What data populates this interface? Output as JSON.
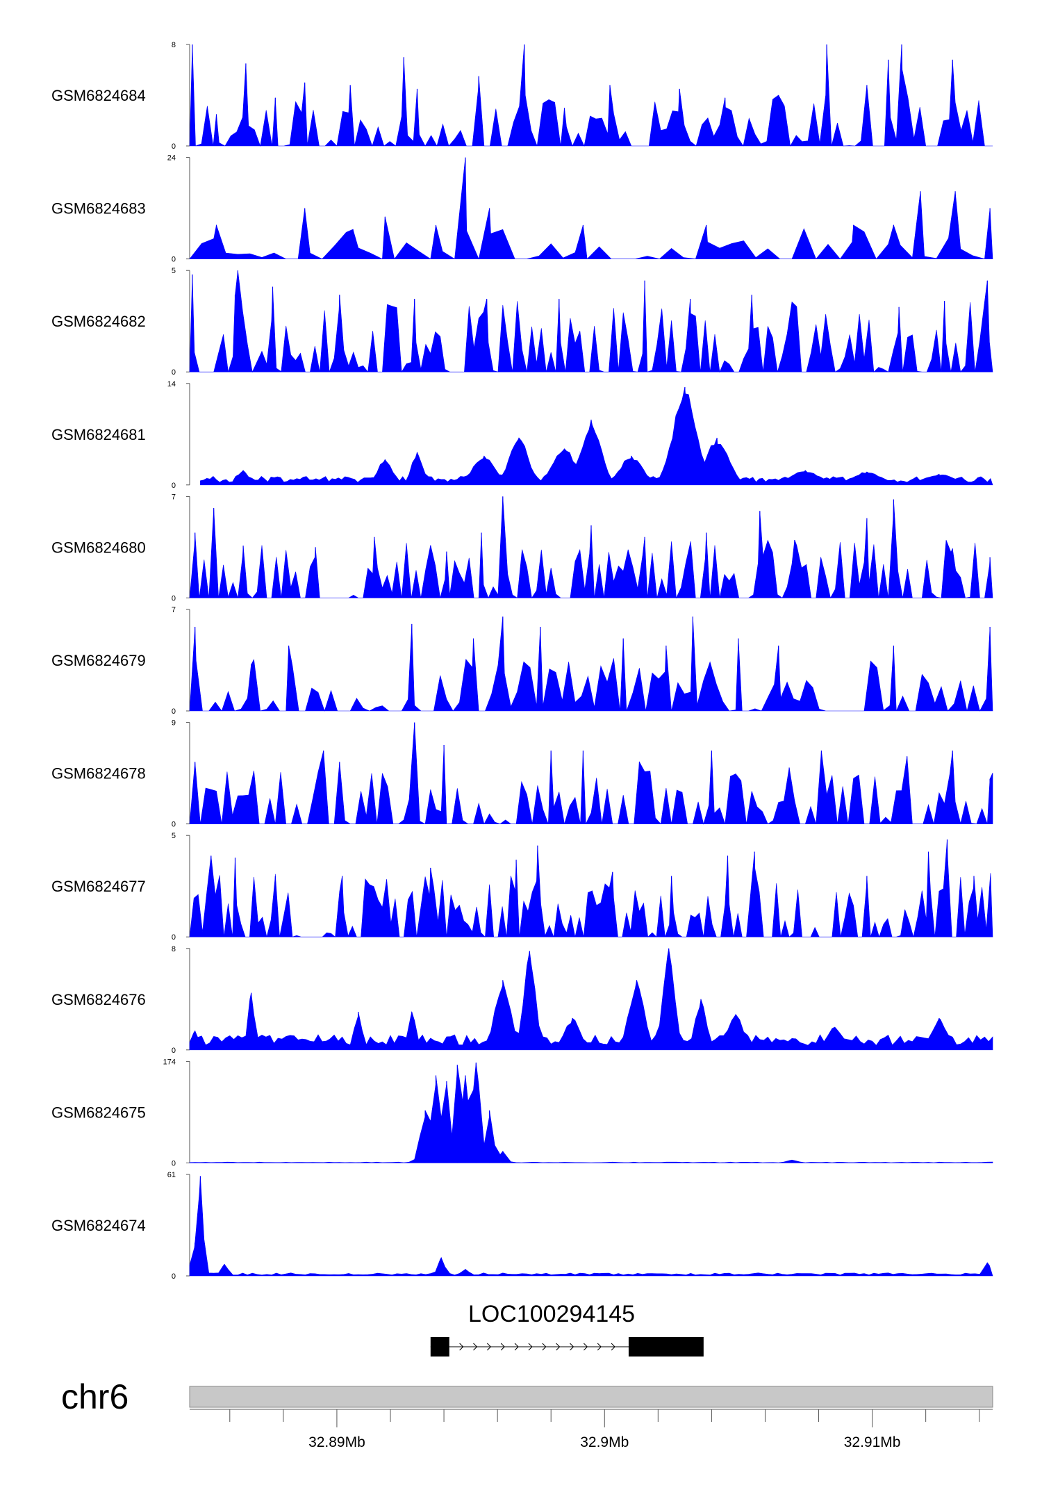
{
  "chart_data": {
    "type": "area",
    "chromosome": "chr6",
    "xlim_mb": [
      32.8845,
      32.9145
    ],
    "axis_ticks_mb": [
      32.89,
      32.9,
      32.91
    ],
    "axis_tick_labels": [
      "32.89Mb",
      "32.9Mb",
      "32.91Mb"
    ],
    "minor_tick_step_mb": 0.002,
    "fill_color": "#0000ff",
    "gene": {
      "name": "LOC100294145",
      "strand": "+",
      "start_mb": 32.8935,
      "end_mb": 32.9027,
      "exons_mb": [
        [
          32.8935,
          32.8942
        ],
        [
          32.9009,
          32.9037
        ]
      ]
    },
    "tracks": [
      {
        "name": "GSM6824684",
        "ymax_label": "8",
        "ymin_label": "0",
        "ymax": 8,
        "peaks": [
          [
            32.8846,
            8.0,
            8e-05
          ],
          [
            32.8855,
            2.5,
            0.0001
          ],
          [
            32.8866,
            6.5,
            0.00012
          ],
          [
            32.8877,
            3.8,
            0.0001
          ],
          [
            32.8888,
            5.0,
            0.0001
          ],
          [
            32.8905,
            4.8,
            0.0001
          ],
          [
            32.8925,
            7.0,
            0.00012
          ],
          [
            32.893,
            4.5,
            0.0001
          ],
          [
            32.8953,
            5.5,
            0.0001
          ],
          [
            32.897,
            8.0,
            8e-05
          ],
          [
            32.8985,
            3.0,
            0.0001
          ],
          [
            32.9002,
            4.8,
            0.0001
          ],
          [
            32.9028,
            4.5,
            0.0001
          ],
          [
            32.9045,
            3.8,
            0.0001
          ],
          [
            32.9065,
            4.0,
            0.0001
          ],
          [
            32.9083,
            8.0,
            8e-05
          ],
          [
            32.9098,
            4.8,
            0.0001
          ],
          [
            32.9106,
            6.8,
            0.0001
          ],
          [
            32.9111,
            8.0,
            8e-05
          ],
          [
            32.913,
            6.8,
            0.0001
          ],
          [
            32.914,
            3.2,
            0.0001
          ]
        ],
        "noise": 2.4,
        "noise_step": 0.00022,
        "seed": 11
      },
      {
        "name": "GSM6824683",
        "ymax_label": "24",
        "ymin_label": "0",
        "ymax": 24,
        "peaks": [
          [
            32.8855,
            8.0,
            0.0001
          ],
          [
            32.8888,
            12.0,
            0.0001
          ],
          [
            32.8906,
            7.0,
            0.0001
          ],
          [
            32.8918,
            10.0,
            0.0001
          ],
          [
            32.8937,
            8.0,
            0.0001
          ],
          [
            32.8948,
            24.0,
            6e-05
          ],
          [
            32.8957,
            12.0,
            0.0001
          ],
          [
            32.8992,
            8.0,
            0.0001
          ],
          [
            32.9038,
            8.0,
            0.0001
          ],
          [
            32.9093,
            8.0,
            0.0001
          ],
          [
            32.9108,
            8.0,
            0.0001
          ],
          [
            32.9118,
            16.0,
            8e-05
          ],
          [
            32.9131,
            16.0,
            8e-05
          ],
          [
            32.9144,
            12.0,
            0.0001
          ]
        ],
        "noise": 4.5,
        "noise_step": 0.00045,
        "seed": 23
      },
      {
        "name": "GSM6824682",
        "ymax_label": "5",
        "ymin_label": "0",
        "ymax": 5,
        "peaks": [
          [
            32.8846,
            4.8,
            0.0001
          ],
          [
            32.8862,
            3.8,
            0.0001
          ],
          [
            32.8863,
            5.0,
            8e-05
          ],
          [
            32.8876,
            4.2,
            0.0001
          ],
          [
            32.8901,
            3.8,
            0.0001
          ],
          [
            32.8929,
            3.6,
            0.0001
          ],
          [
            32.8956,
            3.6,
            0.0001
          ],
          [
            32.8983,
            3.6,
            0.0001
          ],
          [
            32.9015,
            4.5,
            0.0001
          ],
          [
            32.9032,
            3.6,
            0.0001
          ],
          [
            32.9055,
            3.8,
            0.0001
          ],
          [
            32.911,
            3.2,
            0.0001
          ],
          [
            32.9127,
            3.5,
            0.0001
          ],
          [
            32.9143,
            4.5,
            0.0001
          ]
        ],
        "noise": 2.2,
        "noise_step": 0.00018,
        "seed": 37
      },
      {
        "name": "GSM6824681",
        "ymax_label": "14",
        "ymin_label": "0",
        "ymax": 14,
        "peaks": [
          [
            32.8865,
            2.0,
            0.0003
          ],
          [
            32.8918,
            3.5,
            0.0004
          ],
          [
            32.893,
            4.5,
            0.0003
          ],
          [
            32.8955,
            4.0,
            0.0006
          ],
          [
            32.8968,
            6.5,
            0.0005
          ],
          [
            32.8985,
            5.0,
            0.0006
          ],
          [
            32.8995,
            9.0,
            0.0005
          ],
          [
            32.901,
            4.0,
            0.0006
          ],
          [
            32.903,
            13.5,
            0.0006
          ],
          [
            32.9042,
            6.5,
            0.0006
          ],
          [
            32.9075,
            2.0,
            0.0008
          ],
          [
            32.9098,
            1.8,
            0.0008
          ],
          [
            32.9125,
            1.5,
            0.0008
          ]
        ],
        "noise": 1.2,
        "noise_step": 0.00012,
        "seed": 41,
        "smooth": true,
        "start_mb": 32.8849
      },
      {
        "name": "GSM6824680",
        "ymax_label": "7",
        "ymin_label": "0",
        "ymax": 7,
        "peaks": [
          [
            32.8847,
            4.5,
            0.0001
          ],
          [
            32.8854,
            6.2,
            8e-05
          ],
          [
            32.8865,
            3.6,
            0.0001
          ],
          [
            32.8892,
            3.5,
            0.0001
          ],
          [
            32.8914,
            4.2,
            0.0001
          ],
          [
            32.8941,
            3.2,
            0.0001
          ],
          [
            32.8954,
            4.5,
            0.0001
          ],
          [
            32.8962,
            7.0,
            0.0001
          ],
          [
            32.8995,
            5.0,
            0.0001
          ],
          [
            32.9015,
            4.2,
            0.0001
          ],
          [
            32.9038,
            4.5,
            0.0001
          ],
          [
            32.9058,
            6.0,
            0.0001
          ],
          [
            32.9071,
            4.0,
            0.0001
          ],
          [
            32.9098,
            5.5,
            0.0001
          ],
          [
            32.9108,
            6.8,
            0.0001
          ],
          [
            32.913,
            3.4,
            0.0001
          ],
          [
            32.9144,
            2.8,
            0.0001
          ]
        ],
        "noise": 2.5,
        "noise_step": 0.00018,
        "seed": 53
      },
      {
        "name": "GSM6824679",
        "ymax_label": "7",
        "ymin_label": "0",
        "ymax": 7,
        "peaks": [
          [
            32.8847,
            5.8,
            0.0001
          ],
          [
            32.8868,
            3.2,
            0.0001
          ],
          [
            32.8882,
            4.5,
            0.0001
          ],
          [
            32.8928,
            6.0,
            0.0001
          ],
          [
            32.8951,
            5.0,
            0.0001
          ],
          [
            32.8962,
            6.5,
            0.0001
          ],
          [
            32.8976,
            5.8,
            0.0001
          ],
          [
            32.9007,
            5.0,
            0.0001
          ],
          [
            32.9023,
            4.5,
            0.0001
          ],
          [
            32.9033,
            6.5,
            0.0001
          ],
          [
            32.905,
            5.0,
            0.0001
          ],
          [
            32.9065,
            4.5,
            0.0001
          ],
          [
            32.9108,
            4.5,
            0.0001
          ],
          [
            32.9144,
            5.8,
            0.0001
          ]
        ],
        "noise": 2.3,
        "noise_step": 0.00024,
        "seed": 67,
        "gap": [
          32.9085,
          32.9097
        ]
      },
      {
        "name": "GSM6824678",
        "ymax_label": "9",
        "ymin_label": "0",
        "ymax": 9,
        "peaks": [
          [
            32.8847,
            5.5,
            0.0001
          ],
          [
            32.8895,
            6.5,
            0.0001
          ],
          [
            32.8901,
            5.5,
            0.0001
          ],
          [
            32.8929,
            9.0,
            8e-05
          ],
          [
            32.894,
            7.0,
            0.0001
          ],
          [
            32.898,
            6.5,
            0.0001
          ],
          [
            32.8992,
            6.5,
            0.0001
          ],
          [
            32.9013,
            5.5,
            0.0001
          ],
          [
            32.904,
            6.5,
            0.0001
          ],
          [
            32.9069,
            5.0,
            0.0001
          ],
          [
            32.9081,
            6.5,
            0.0001
          ],
          [
            32.9113,
            6.0,
            0.0001
          ],
          [
            32.913,
            6.5,
            0.0001
          ],
          [
            32.9144,
            4.0,
            0.0001
          ]
        ],
        "noise": 3.0,
        "noise_step": 0.0002,
        "seed": 71
      },
      {
        "name": "GSM6824677",
        "ymax_label": "5",
        "ymin_label": "0",
        "ymax": 5,
        "peaks": [
          [
            32.8853,
            4.0,
            0.0001
          ],
          [
            32.8862,
            3.9,
            0.0001
          ],
          [
            32.8877,
            3.0,
            0.0001
          ],
          [
            32.8902,
            3.0,
            0.0001
          ],
          [
            32.8935,
            3.4,
            0.0001
          ],
          [
            32.8967,
            3.8,
            0.0001
          ],
          [
            32.8975,
            4.5,
            0.0001
          ],
          [
            32.9003,
            3.2,
            0.0001
          ],
          [
            32.9025,
            3.0,
            0.0001
          ],
          [
            32.9046,
            4.0,
            0.0001
          ],
          [
            32.9056,
            4.2,
            0.0001
          ],
          [
            32.9098,
            3.0,
            0.0001
          ],
          [
            32.9121,
            4.2,
            0.0001
          ],
          [
            32.9128,
            4.8,
            0.0001
          ],
          [
            32.9138,
            3.0,
            0.0001
          ]
        ],
        "noise": 2.0,
        "noise_step": 0.00016,
        "seed": 83
      },
      {
        "name": "GSM6824676",
        "ymax_label": "8",
        "ymin_label": "0",
        "ymax": 8,
        "peaks": [
          [
            32.8847,
            1.5,
            0.0002
          ],
          [
            32.8868,
            4.5,
            0.00015
          ],
          [
            32.8908,
            3.0,
            0.0002
          ],
          [
            32.8928,
            3.0,
            0.0002
          ],
          [
            32.8962,
            5.5,
            0.0004
          ],
          [
            32.8972,
            7.8,
            0.0003
          ],
          [
            32.8988,
            2.5,
            0.0004
          ],
          [
            32.9012,
            5.5,
            0.0004
          ],
          [
            32.9024,
            8.0,
            0.0003
          ],
          [
            32.9036,
            4.0,
            0.0003
          ],
          [
            32.9049,
            2.8,
            0.0004
          ],
          [
            32.9086,
            1.8,
            0.0004
          ],
          [
            32.9125,
            2.5,
            0.0004
          ]
        ],
        "noise": 1.2,
        "noise_step": 0.00015,
        "seed": 97,
        "smooth": true
      },
      {
        "name": "GSM6824675",
        "ymax_label": "174",
        "ymin_label": "0",
        "ymax": 174,
        "peaks": [
          [
            32.8933,
            90.0,
            0.00025
          ],
          [
            32.8937,
            150.0,
            0.00025
          ],
          [
            32.8941,
            140.0,
            0.0002
          ],
          [
            32.8945,
            168.0,
            0.00018
          ],
          [
            32.8948,
            150.0,
            0.0002
          ],
          [
            32.8952,
            172.0,
            0.0002
          ],
          [
            32.8957,
            90.0,
            0.0002
          ],
          [
            32.8962,
            20.0,
            0.0002
          ],
          [
            32.907,
            5.0,
            0.0003
          ]
        ],
        "noise": 1.5,
        "noise_step": 0.0002,
        "seed": 101,
        "smooth": true,
        "start_mb": 32.8845
      },
      {
        "name": "GSM6824674",
        "ymax_label": "61",
        "ymin_label": "0",
        "ymax": 61,
        "peaks": [
          [
            32.8849,
            60.0,
            0.00015
          ],
          [
            32.8847,
            20.0,
            0.0002
          ],
          [
            32.8858,
            7.0,
            0.0002
          ],
          [
            32.8939,
            11.0,
            0.00018
          ],
          [
            32.8948,
            4.0,
            0.0002
          ],
          [
            32.9143,
            8.0,
            0.0002
          ]
        ],
        "noise": 1.8,
        "noise_step": 0.00018,
        "seed": 113,
        "smooth": true
      }
    ]
  }
}
